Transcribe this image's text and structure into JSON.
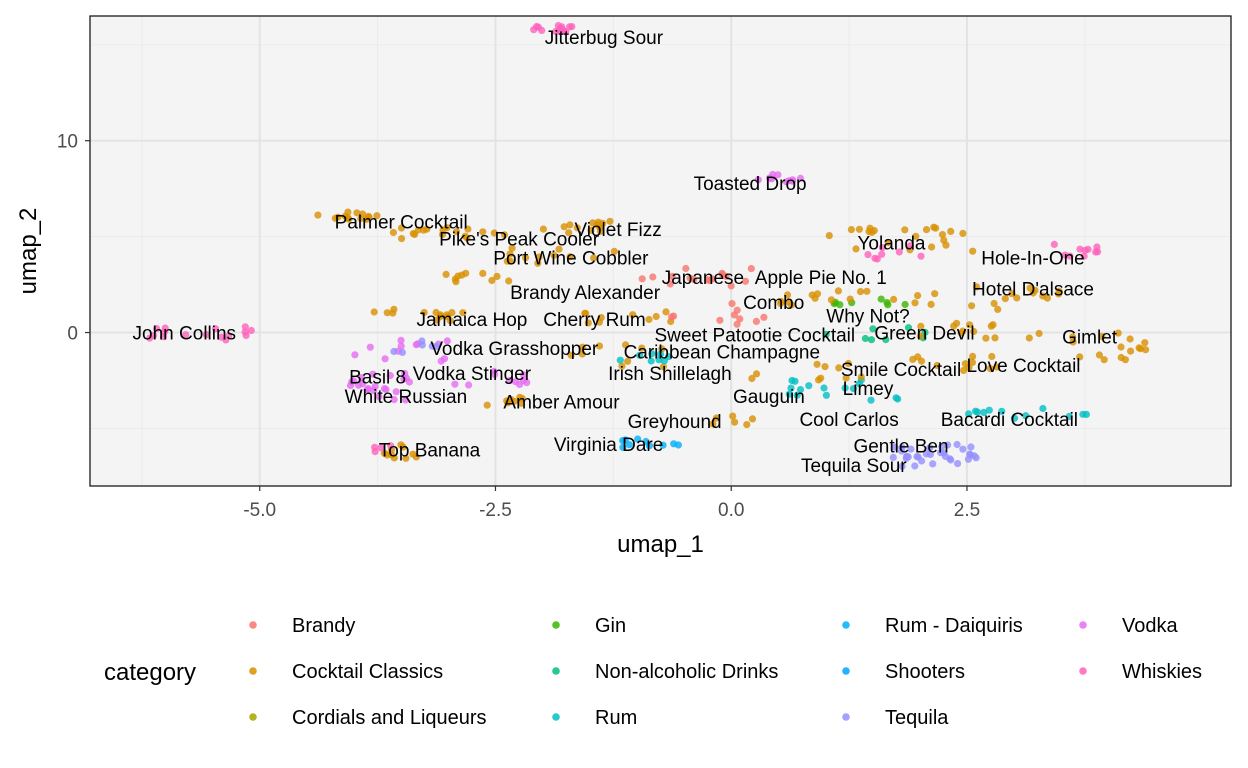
{
  "chart_data": {
    "type": "scatter",
    "xlabel": "umap_1",
    "ylabel": "umap_2",
    "xlim": [
      -6.8,
      5.3
    ],
    "ylim": [
      -8.0,
      16.5
    ],
    "x_ticks": [
      -5.0,
      -2.5,
      0.0,
      2.5
    ],
    "x_tick_labels": [
      "-5.0",
      "-2.5",
      "0.0",
      "2.5"
    ],
    "y_ticks": [
      0,
      10
    ],
    "y_tick_labels": [
      "0",
      "10"
    ],
    "grid": true,
    "legend": {
      "title": "category",
      "placement": "bottom",
      "columns": 4,
      "entries": [
        {
          "name": "Brandy",
          "color": "#F8766D"
        },
        {
          "name": "Cocktail Classics",
          "color": "#D89000"
        },
        {
          "name": "Cordials and Liqueurs",
          "color": "#A3A500"
        },
        {
          "name": "Gin",
          "color": "#39B600"
        },
        {
          "name": "Non-alcoholic Drinks",
          "color": "#00BF7D"
        },
        {
          "name": "Rum",
          "color": "#00BFC4"
        },
        {
          "name": "Rum - Daiquiris",
          "color": "#00B0F6"
        },
        {
          "name": "Shooters",
          "color": "#00A5FF"
        },
        {
          "name": "Tequila",
          "color": "#9590FF"
        },
        {
          "name": "Vodka",
          "color": "#E76BF3"
        },
        {
          "name": "Whiskies",
          "color": "#FF62BC"
        }
      ]
    },
    "clusters": [
      {
        "category": "Whiskies",
        "x": [
          -2.15,
          -1.65
        ],
        "y": [
          15.6,
          16.0
        ],
        "n": 14
      },
      {
        "category": "Vodka",
        "x": [
          0.2,
          0.75
        ],
        "y": [
          7.8,
          8.3
        ],
        "n": 10
      },
      {
        "category": "Cocktail Classics",
        "x": [
          -4.4,
          -3.6
        ],
        "y": [
          5.9,
          6.3
        ],
        "n": 14
      },
      {
        "category": "Cocktail Classics",
        "x": [
          -3.6,
          -2.4
        ],
        "y": [
          4.7,
          5.5
        ],
        "n": 18
      },
      {
        "category": "Cocktail Classics",
        "x": [
          -2.0,
          -1.1
        ],
        "y": [
          5.2,
          5.8
        ],
        "n": 14
      },
      {
        "category": "Cocktail Classics",
        "x": [
          -2.5,
          -1.2
        ],
        "y": [
          3.6,
          4.5
        ],
        "n": 12
      },
      {
        "category": "Cocktail Classics",
        "x": [
          -3.1,
          -2.3
        ],
        "y": [
          2.5,
          3.1
        ],
        "n": 10
      },
      {
        "category": "Brandy",
        "x": [
          -1.0,
          0.3
        ],
        "y": [
          2.4,
          3.4
        ],
        "n": 16
      },
      {
        "category": "Cocktail Classics",
        "x": [
          1.0,
          2.6
        ],
        "y": [
          4.2,
          5.5
        ],
        "n": 22
      },
      {
        "category": "Whiskies",
        "x": [
          1.4,
          2.2
        ],
        "y": [
          3.8,
          4.6
        ],
        "n": 8
      },
      {
        "category": "Whiskies",
        "x": [
          3.4,
          4.0
        ],
        "y": [
          3.9,
          4.6
        ],
        "n": 10
      },
      {
        "category": "Cocktail Classics",
        "x": [
          2.5,
          3.5
        ],
        "y": [
          1.2,
          2.4
        ],
        "n": 14
      },
      {
        "category": "Cocktail Classics",
        "x": [
          3.6,
          4.4
        ],
        "y": [
          -1.5,
          0.0
        ],
        "n": 16
      },
      {
        "category": "Gin",
        "x": [
          1.0,
          2.0
        ],
        "y": [
          1.4,
          2.0
        ],
        "n": 8
      },
      {
        "category": "Cocktail Classics",
        "x": [
          0.5,
          2.3
        ],
        "y": [
          1.4,
          2.2
        ],
        "n": 18
      },
      {
        "category": "Cocktail Classics",
        "x": [
          -3.3,
          -2.7
        ],
        "y": [
          0.6,
          1.1
        ],
        "n": 8
      },
      {
        "category": "Cocktail Classics",
        "x": [
          -3.9,
          -3.1
        ],
        "y": [
          0.8,
          1.3
        ],
        "n": 6
      },
      {
        "category": "Cocktail Classics",
        "x": [
          -1.7,
          -0.6
        ],
        "y": [
          0.5,
          1.1
        ],
        "n": 10
      },
      {
        "category": "Brandy",
        "x": [
          -0.9,
          0.4
        ],
        "y": [
          0.3,
          1.6
        ],
        "n": 10
      },
      {
        "category": "Non-alcoholic Drinks",
        "x": [
          1.0,
          2.1
        ],
        "y": [
          -0.4,
          0.4
        ],
        "n": 8
      },
      {
        "category": "Cocktail Classics",
        "x": [
          1.9,
          3.4
        ],
        "y": [
          -0.3,
          0.5
        ],
        "n": 14
      },
      {
        "category": "Cocktail Classics",
        "x": [
          1.8,
          3.0
        ],
        "y": [
          -2.0,
          -1.1
        ],
        "n": 12
      },
      {
        "category": "Whiskies",
        "x": [
          -6.4,
          -5.0
        ],
        "y": [
          -0.4,
          0.3
        ],
        "n": 16
      },
      {
        "category": "Vodka",
        "x": [
          -4.0,
          -3.0
        ],
        "y": [
          -1.5,
          -0.4
        ],
        "n": 12
      },
      {
        "category": "Tequila",
        "x": [
          -3.7,
          -3.1
        ],
        "y": [
          -1.3,
          -0.4
        ],
        "n": 6
      },
      {
        "category": "Vodka",
        "x": [
          -4.1,
          -3.4
        ],
        "y": [
          -3.6,
          -2.0
        ],
        "n": 22
      },
      {
        "category": "Vodka",
        "x": [
          -3.0,
          -2.1
        ],
        "y": [
          -2.8,
          -2.0
        ],
        "n": 10
      },
      {
        "category": "Cocktail Classics",
        "x": [
          -2.7,
          -2.2
        ],
        "y": [
          -3.8,
          -3.3
        ],
        "n": 8
      },
      {
        "category": "Cocktail Classics",
        "x": [
          -1.7,
          -0.6
        ],
        "y": [
          -1.8,
          -0.5
        ],
        "n": 10
      },
      {
        "category": "Rum",
        "x": [
          -1.2,
          -0.3
        ],
        "y": [
          -1.6,
          -0.9
        ],
        "n": 8
      },
      {
        "category": "Rum",
        "x": [
          0.6,
          1.9
        ],
        "y": [
          -3.6,
          -2.4
        ],
        "n": 16
      },
      {
        "category": "Cocktail Classics",
        "x": [
          0.2,
          1.6
        ],
        "y": [
          -2.5,
          -1.5
        ],
        "n": 10
      },
      {
        "category": "Cocktail Classics",
        "x": [
          -0.2,
          0.3
        ],
        "y": [
          -4.8,
          -4.2
        ],
        "n": 6
      },
      {
        "category": "Rum - Daiquiris",
        "x": [
          -1.2,
          -0.5
        ],
        "y": [
          -6.0,
          -5.5
        ],
        "n": 10
      },
      {
        "category": "Rum",
        "x": [
          2.3,
          3.8
        ],
        "y": [
          -4.5,
          -3.9
        ],
        "n": 12
      },
      {
        "category": "Tequila",
        "x": [
          1.7,
          2.6
        ],
        "y": [
          -6.6,
          -5.8
        ],
        "n": 22
      },
      {
        "category": "Tequila",
        "x": [
          1.8,
          2.6
        ],
        "y": [
          -7.0,
          -6.4
        ],
        "n": 12
      },
      {
        "category": "Cocktail Classics",
        "x": [
          -4.0,
          -3.3
        ],
        "y": [
          -6.6,
          -5.8
        ],
        "n": 10
      },
      {
        "category": "Whiskies",
        "x": [
          -3.9,
          -3.6
        ],
        "y": [
          -6.3,
          -5.8
        ],
        "n": 4
      }
    ],
    "annotations": [
      {
        "text": "Jitterbug Sour",
        "x": -1.35,
        "y": 15.4
      },
      {
        "text": "Toasted Drop",
        "x": 0.2,
        "y": 7.8
      },
      {
        "text": "Palmer Cocktail",
        "x": -3.5,
        "y": 5.8
      },
      {
        "text": "Violet Fizz",
        "x": -1.2,
        "y": 5.4
      },
      {
        "text": "Pike's Peak Cooler",
        "x": -2.25,
        "y": 4.9
      },
      {
        "text": "Yolanda",
        "x": 1.7,
        "y": 4.7
      },
      {
        "text": "Port Wine Cobbler",
        "x": -1.7,
        "y": 3.9
      },
      {
        "text": "Hole-In-One",
        "x": 3.2,
        "y": 3.9
      },
      {
        "text": "Japanese",
        "x": -0.3,
        "y": 2.9
      },
      {
        "text": "Apple Pie No. 1",
        "x": 0.95,
        "y": 2.9
      },
      {
        "text": "Brandy Alexander",
        "x": -1.55,
        "y": 2.1
      },
      {
        "text": "Hotel D'alsace",
        "x": 3.2,
        "y": 2.3
      },
      {
        "text": "Combo",
        "x": 0.45,
        "y": 1.6
      },
      {
        "text": "Why Not?",
        "x": 1.45,
        "y": 0.9
      },
      {
        "text": "Jamaica Hop",
        "x": -2.75,
        "y": 0.7
      },
      {
        "text": "Cherry Rum",
        "x": -1.45,
        "y": 0.7
      },
      {
        "text": "Sweet Patootie Cocktail",
        "x": 0.25,
        "y": -0.1
      },
      {
        "text": "Green Devil",
        "x": 2.05,
        "y": 0.0
      },
      {
        "text": "John Collins",
        "x": -5.8,
        "y": 0.0
      },
      {
        "text": "Gimlet",
        "x": 3.8,
        "y": -0.2
      },
      {
        "text": "Vodka Grasshopper",
        "x": -2.3,
        "y": -0.8
      },
      {
        "text": "Caribbean Champagne",
        "x": -0.1,
        "y": -1.0
      },
      {
        "text": "Love Cocktail",
        "x": 3.1,
        "y": -1.7
      },
      {
        "text": "Smile Cocktail",
        "x": 1.8,
        "y": -1.9
      },
      {
        "text": "Vodka Stinger",
        "x": -2.75,
        "y": -2.1
      },
      {
        "text": "Irish Shillelagh",
        "x": -0.65,
        "y": -2.1
      },
      {
        "text": "Basil 8",
        "x": -3.75,
        "y": -2.3
      },
      {
        "text": "Limey",
        "x": 1.45,
        "y": -2.9
      },
      {
        "text": "Gauguin",
        "x": 0.4,
        "y": -3.3
      },
      {
        "text": "White Russian",
        "x": -3.45,
        "y": -3.3
      },
      {
        "text": "Amber Amour",
        "x": -1.8,
        "y": -3.6
      },
      {
        "text": "Greyhound",
        "x": -0.6,
        "y": -4.6
      },
      {
        "text": "Cool Carlos",
        "x": 1.25,
        "y": -4.5
      },
      {
        "text": "Bacardi Cocktail",
        "x": 2.95,
        "y": -4.5
      },
      {
        "text": "Virginia Dare",
        "x": -1.3,
        "y": -5.8
      },
      {
        "text": "Gentle Ben",
        "x": 1.8,
        "y": -5.9
      },
      {
        "text": "Top Banana",
        "x": -3.2,
        "y": -6.1
      },
      {
        "text": "Tequila Sour",
        "x": 1.3,
        "y": -6.9
      }
    ]
  }
}
